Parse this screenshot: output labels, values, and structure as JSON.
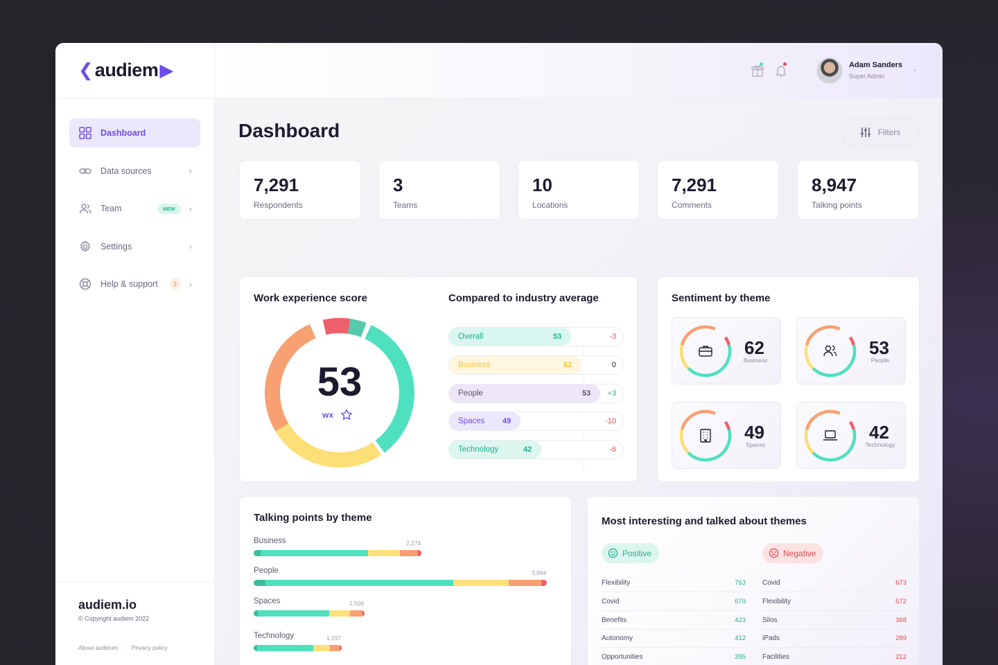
{
  "brand": {
    "logo_text": "audiem",
    "site": "audiem.io",
    "copyright": "© Copyright audiem 2022",
    "links": [
      "About audieum",
      "Privacy policy"
    ]
  },
  "nav": [
    {
      "label": "Dashboard",
      "icon": "grid-icon",
      "active": true
    },
    {
      "label": "Data sources",
      "icon": "link-icon"
    },
    {
      "label": "Team",
      "icon": "users-icon",
      "badge": "NEW"
    },
    {
      "label": "Settings",
      "icon": "gear-icon"
    },
    {
      "label": "Help & support",
      "icon": "lifebuoy-icon",
      "badge": "3"
    }
  ],
  "user": {
    "name": "Adam Sanders",
    "role": "Super Admin"
  },
  "page": {
    "title": "Dashboard",
    "filters_label": "Filters"
  },
  "stats": [
    {
      "value": "7,291",
      "label": "Respondents"
    },
    {
      "value": "3",
      "label": "Teams"
    },
    {
      "value": "10",
      "label": "Locations"
    },
    {
      "value": "7,291",
      "label": "Comments"
    },
    {
      "value": "8,947",
      "label": "Talking points"
    }
  ],
  "wx": {
    "title": "Work experience score",
    "score": "53",
    "unit": "wx"
  },
  "compare": {
    "title": "Compared to industry average",
    "rows": [
      {
        "name": "Overall",
        "value": "53",
        "diff": "-3",
        "fill": 0.7,
        "bg": "#d9f7f0",
        "fg": "#1fae8c",
        "diffColor": "#e5484d"
      },
      {
        "name": "Business",
        "value": "62",
        "diff": "0",
        "fill": 0.76,
        "bg": "#fff6e0",
        "fg": "#f3c43b",
        "diffColor": "#1c1b2e"
      },
      {
        "name": "People",
        "value": "53",
        "diff": "+3",
        "fill": 0.87,
        "bg": "#ede6f7",
        "fg": "#55536a",
        "diffColor": "#1fae8c"
      },
      {
        "name": "Spaces",
        "value": "49",
        "diff": "-10",
        "fill": 0.41,
        "bg": "#ece8fb",
        "fg": "#6d4ce8",
        "diffColor": "#e5484d"
      },
      {
        "name": "Technology",
        "value": "42",
        "diff": "-6",
        "fill": 0.53,
        "bg": "#dcf6f0",
        "fg": "#1fae8c",
        "diffColor": "#e5484d"
      }
    ]
  },
  "sentiment": {
    "title": "Sentiment by theme",
    "items": [
      {
        "value": "62",
        "label": "Business",
        "icon": "briefcase-icon"
      },
      {
        "value": "53",
        "label": "People",
        "icon": "users-icon"
      },
      {
        "value": "49",
        "label": "Spaces",
        "icon": "building-icon"
      },
      {
        "value": "42",
        "label": "Technology",
        "icon": "laptop-icon"
      }
    ]
  },
  "talking": {
    "title": "Talking points by theme",
    "axis": [
      "0",
      "1,000",
      "2,000",
      "3,000",
      "4,000"
    ],
    "rows": [
      {
        "name": "Business",
        "count": "2,274",
        "total": 2274
      },
      {
        "name": "People",
        "count": "3,984",
        "total": 3984
      },
      {
        "name": "Spaces",
        "count": "1,506",
        "total": 1506
      },
      {
        "name": "Technology",
        "count": "1,197",
        "total": 1197
      }
    ]
  },
  "themes": {
    "title": "Most interesting and talked about themes",
    "positive_label": "Positive",
    "negative_label": "Negative",
    "positive": [
      {
        "name": "Flexibility",
        "value": "763"
      },
      {
        "name": "Covid",
        "value": "679"
      },
      {
        "name": "Benefits",
        "value": "423"
      },
      {
        "name": "Autonomy",
        "value": "412"
      },
      {
        "name": "Opportunities",
        "value": "395"
      }
    ],
    "negative": [
      {
        "name": "Covid",
        "value": "673"
      },
      {
        "name": "Flexibility",
        "value": "572"
      },
      {
        "name": "Silos",
        "value": "368"
      },
      {
        "name": "iPads",
        "value": "289"
      },
      {
        "name": "Facilities",
        "value": "212"
      }
    ]
  },
  "colors": {
    "accent": "#6d4ce8",
    "green": "#4fe0bf",
    "yellow": "#fde079",
    "orange": "#f7a072",
    "red": "#ee5f6c"
  }
}
